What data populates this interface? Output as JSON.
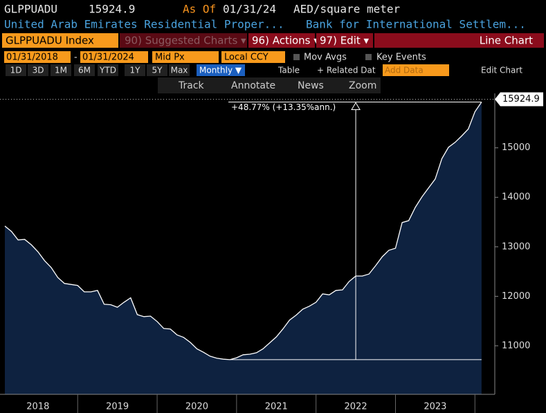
{
  "header": {
    "ticker": "GLPPUADU",
    "value": "15924.9",
    "as_of": "As Of",
    "date": "01/31/24",
    "units": "AED/square meter",
    "name": "United Arab Emirates Residential Proper...",
    "source": "Bank for International Settlem..."
  },
  "toolbar": {
    "security": "GLPPUADU Index",
    "suggested": "90) Suggested Charts ▾",
    "actions": "96) Actions ▾",
    "edit": "97) Edit ▾",
    "chart_type": "Line Chart"
  },
  "range": {
    "start": "01/31/2018",
    "dash": "-",
    "end": "01/31/2024",
    "price": "Mid Px",
    "currency": "Local CCY",
    "mov_avgs": "Mov Avgs",
    "key_events": "Key Events"
  },
  "periods": [
    "1D",
    "3D",
    "1M",
    "6M",
    "YTD",
    "1Y",
    "5Y",
    "Max"
  ],
  "frequency": "Monthly ▼",
  "table": "Table",
  "related": "+ Related Dat",
  "add_data": "Add Data",
  "edit_chart": "Edit Chart",
  "tools": [
    "Track",
    "Annotate",
    "News",
    "Zoom"
  ],
  "chart_data": {
    "type": "line",
    "color": "#ffffff",
    "fill": "#0e2240",
    "x": [
      "2018-01",
      "2018-02",
      "2018-03",
      "2018-04",
      "2018-05",
      "2018-06",
      "2018-07",
      "2018-08",
      "2018-09",
      "2018-10",
      "2018-11",
      "2018-12",
      "2019-01",
      "2019-02",
      "2019-03",
      "2019-04",
      "2019-05",
      "2019-06",
      "2019-07",
      "2019-08",
      "2019-09",
      "2019-10",
      "2019-11",
      "2019-12",
      "2020-01",
      "2020-02",
      "2020-03",
      "2020-04",
      "2020-05",
      "2020-06",
      "2020-07",
      "2020-08",
      "2020-09",
      "2020-10",
      "2020-11",
      "2020-12",
      "2021-01",
      "2021-02",
      "2021-03",
      "2021-04",
      "2021-05",
      "2021-06",
      "2021-07",
      "2021-08",
      "2021-09",
      "2021-10",
      "2021-11",
      "2021-12",
      "2022-01",
      "2022-02",
      "2022-03",
      "2022-04",
      "2022-05",
      "2022-06",
      "2022-07",
      "2022-08",
      "2022-09",
      "2022-10",
      "2022-11",
      "2022-12",
      "2023-01",
      "2023-02",
      "2023-03",
      "2023-04",
      "2023-05",
      "2023-06",
      "2023-07",
      "2023-08",
      "2023-09",
      "2023-10",
      "2023-11",
      "2023-12",
      "2024-01"
    ],
    "values": [
      13420,
      13310,
      13140,
      13150,
      13040,
      12900,
      12720,
      12580,
      12380,
      12260,
      12240,
      12220,
      12090,
      12090,
      12120,
      11840,
      11830,
      11780,
      11880,
      11970,
      11630,
      11590,
      11600,
      11490,
      11350,
      11340,
      11220,
      11170,
      11070,
      10940,
      10870,
      10790,
      10750,
      10730,
      10720,
      10760,
      10820,
      10830,
      10860,
      10940,
      11060,
      11180,
      11340,
      11520,
      11620,
      11740,
      11800,
      11880,
      12050,
      12030,
      12120,
      12130,
      12300,
      12410,
      12410,
      12450,
      12620,
      12800,
      12930,
      12970,
      13490,
      13530,
      13800,
      14010,
      14190,
      14370,
      14780,
      15010,
      15110,
      15240,
      15380,
      15730,
      15924.9
    ],
    "xlim": [
      "2018-01",
      "2024-03"
    ],
    "xticks": [
      "2018-12",
      "2019-12",
      "2020-12",
      "2021-12",
      "2022-12",
      "2023-12"
    ],
    "xlabels": [
      "2018",
      "2019",
      "2020",
      "2021",
      "2022",
      "2023"
    ],
    "ylim": [
      10020,
      16030
    ],
    "yticks": [
      11000,
      12000,
      13000,
      14000,
      15000
    ],
    "grid": false,
    "annotation": "+48.77% (+13.35%ann.)"
  }
}
